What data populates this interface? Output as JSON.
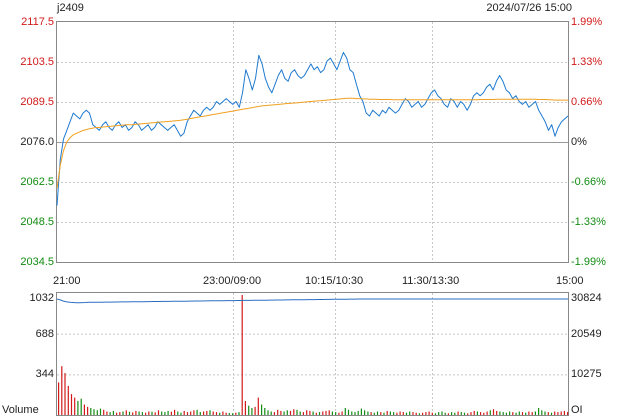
{
  "header": {
    "symbol": "j2409",
    "datetime": "2024/07/26 15:00"
  },
  "colors": {
    "up": "#d21a1a",
    "down": "#128c12",
    "neutral": "#222222",
    "price_line": "#1f7ad0",
    "avg_line": "#f0a020",
    "oi_line": "#2a6fc0"
  },
  "chart_data": [
    {
      "type": "line",
      "price_axis": {
        "left_ticks": [
          "2117.5",
          "2103.5",
          "2089.5",
          "2076.0",
          "2062.5",
          "2048.5",
          "2034.5"
        ],
        "right_ticks": [
          "1.99%",
          "1.33%",
          "0.66%",
          "0%",
          "-0.66%",
          "-1.33%",
          "-1.99%"
        ],
        "ylim": [
          2034.5,
          2117.5
        ],
        "base": 2076.0
      },
      "time_axis": {
        "ticks": [
          "21:00",
          "23:00/09:00",
          "10:15/10:30",
          "11:30/13:30",
          "15:00"
        ]
      },
      "series": [
        {
          "role": "price",
          "values": [
            2054,
            2070,
            2077,
            2080,
            2083,
            2086,
            2085,
            2084,
            2086,
            2087,
            2086,
            2082,
            2081,
            2080,
            2082,
            2083,
            2081,
            2080,
            2082,
            2083,
            2081,
            2082,
            2080,
            2081,
            2083,
            2082,
            2080,
            2081,
            2082,
            2080,
            2081,
            2083,
            2082,
            2081,
            2080,
            2081,
            2082,
            2080,
            2078,
            2079,
            2083,
            2085,
            2087,
            2086,
            2085,
            2087,
            2088,
            2087,
            2088,
            2090,
            2089,
            2090,
            2091,
            2090,
            2089,
            2090,
            2088,
            2093,
            2101,
            2098,
            2094,
            2098,
            2106,
            2103,
            2098,
            2095,
            2093,
            2096,
            2099,
            2101,
            2098,
            2097,
            2100,
            2101,
            2099,
            2098,
            2099,
            2101,
            2103,
            2101,
            2102,
            2100,
            2101,
            2104,
            2105,
            2103,
            2101,
            2104,
            2107,
            2105,
            2101,
            2100,
            2096,
            2092,
            2090,
            2086,
            2085,
            2087,
            2086,
            2085,
            2087,
            2086,
            2088,
            2087,
            2086,
            2087,
            2089,
            2091,
            2090,
            2088,
            2089,
            2090,
            2088,
            2089,
            2091,
            2093,
            2094,
            2092,
            2091,
            2089,
            2088,
            2091,
            2090,
            2088,
            2090,
            2089,
            2087,
            2089,
            2092,
            2093,
            2092,
            2093,
            2095,
            2096,
            2094,
            2097,
            2099,
            2097,
            2094,
            2093,
            2091,
            2092,
            2090,
            2089,
            2090,
            2088,
            2089,
            2090,
            2087,
            2085,
            2083,
            2080,
            2082,
            2078,
            2081,
            2083,
            2084,
            2085
          ]
        },
        {
          "role": "average",
          "values": [
            2060,
            2068,
            2073,
            2076,
            2077.5,
            2078.5,
            2079,
            2079.5,
            2080,
            2080.3,
            2080.6,
            2080.8,
            2081,
            2081,
            2081.2,
            2081.3,
            2081.4,
            2081.5,
            2081.6,
            2081.7,
            2081.8,
            2081.9,
            2082,
            2082,
            2082.1,
            2082.2,
            2082.3,
            2082.4,
            2082.5,
            2082.6,
            2082.7,
            2082.8,
            2082.9,
            2083,
            2083.1,
            2083.2,
            2083.3,
            2083.4,
            2083.5,
            2083.7,
            2083.9,
            2084.1,
            2084.3,
            2084.5,
            2084.7,
            2084.9,
            2085.1,
            2085.3,
            2085.5,
            2085.7,
            2085.9,
            2086.1,
            2086.3,
            2086.5,
            2086.7,
            2086.9,
            2087.1,
            2087.3,
            2087.5,
            2087.7,
            2087.9,
            2088.1,
            2088.3,
            2088.5,
            2088.6,
            2088.7,
            2088.8,
            2088.9,
            2089,
            2089.1,
            2089.2,
            2089.3,
            2089.4,
            2089.5,
            2089.6,
            2089.7,
            2089.8,
            2089.9,
            2090,
            2090.1,
            2090.2,
            2090.3,
            2090.4,
            2090.5,
            2090.6,
            2090.7,
            2090.8,
            2090.9,
            2091,
            2091.1,
            2091.1,
            2091.1,
            2091,
            2091,
            2090.9,
            2090.9,
            2090.8,
            2090.8,
            2090.8,
            2090.7,
            2090.7,
            2090.7,
            2090.7,
            2090.6,
            2090.6,
            2090.6,
            2090.6,
            2090.6,
            2090.6,
            2090.6,
            2090.6,
            2090.6,
            2090.6,
            2090.6,
            2090.6,
            2090.6,
            2090.6,
            2090.6,
            2090.6,
            2090.6,
            2090.6,
            2090.6,
            2090.6,
            2090.6,
            2090.6,
            2090.6,
            2090.6,
            2090.6,
            2090.6,
            2090.6,
            2090.7,
            2090.7,
            2090.7,
            2090.7,
            2090.7,
            2090.8,
            2090.8,
            2090.8,
            2090.8,
            2090.8,
            2090.8,
            2090.8,
            2090.8,
            2090.8,
            2090.8,
            2090.8,
            2090.8,
            2090.8,
            2090.7,
            2090.7,
            2090.7,
            2090.6,
            2090.6,
            2090.5,
            2090.5,
            2090.5,
            2090.5,
            2090.5
          ]
        }
      ]
    },
    {
      "type": "bar",
      "volume_axis": {
        "label": "Volume",
        "left_ticks": [
          "1032",
          "688",
          "344"
        ],
        "ylim": [
          0,
          1032
        ]
      },
      "oi_axis": {
        "label": "OI",
        "right_ticks": [
          "30824",
          "20549",
          "10275"
        ]
      },
      "series": [
        {
          "role": "volume",
          "values": [
            280,
            420,
            360,
            250,
            180,
            150,
            120,
            140,
            90,
            70,
            60,
            50,
            40,
            55,
            45,
            30,
            25,
            35,
            20,
            25,
            30,
            40,
            28,
            22,
            35,
            30,
            25,
            20,
            30,
            28,
            22,
            40,
            30,
            25,
            35,
            28,
            45,
            30,
            20,
            35,
            25,
            30,
            40,
            45,
            25,
            30,
            35,
            40,
            30,
            25,
            20,
            30,
            20,
            18,
            15,
            20,
            25,
            1032,
            120,
            80,
            60,
            70,
            150,
            90,
            60,
            40,
            30,
            25,
            45,
            35,
            30,
            40,
            35,
            50,
            45,
            30,
            25,
            40,
            35,
            30,
            20,
            25,
            30,
            35,
            40,
            30,
            25,
            20,
            30,
            60,
            45,
            30,
            25,
            35,
            55,
            40,
            30,
            25,
            20,
            30,
            25,
            20,
            35,
            30,
            25,
            20,
            30,
            25,
            20,
            30,
            25,
            20,
            15,
            20,
            25,
            30,
            20,
            15,
            25,
            30,
            20,
            15,
            25,
            20,
            30,
            25,
            20,
            15,
            25,
            35,
            30,
            25,
            20,
            30,
            40,
            50,
            35,
            30,
            25,
            20,
            30,
            25,
            20,
            30,
            25,
            20,
            30,
            25,
            30,
            60,
            40,
            30,
            25,
            20,
            30,
            25,
            30,
            35,
            25
          ]
        },
        {
          "role": "open_interest",
          "values": [
            30824,
            30600,
            30300,
            30100,
            30000,
            29950,
            29900,
            29900,
            29920,
            29950,
            29980,
            30000,
            30000,
            30010,
            30020,
            30030,
            30040,
            30050,
            30060,
            30070,
            30080,
            30090,
            30100,
            30110,
            30120,
            30130,
            30140,
            30150,
            30160,
            30170,
            30180,
            30190,
            30200,
            30210,
            30220,
            30230,
            30240,
            30250,
            30260,
            30270,
            30280,
            30290,
            30300,
            30310,
            30320,
            30330,
            30340,
            30350,
            30360,
            30370,
            30380,
            30390,
            30400,
            30410,
            30420,
            30430,
            30440,
            30450,
            30460,
            30470,
            30480,
            30490,
            30500,
            30510,
            30520,
            30530,
            30540,
            30550,
            30560,
            30570,
            30580,
            30590,
            30600,
            30610,
            30620,
            30630,
            30640,
            30650,
            30660,
            30670,
            30680,
            30690,
            30700,
            30710,
            30720,
            30730,
            30740,
            30750,
            30760,
            30770,
            30780,
            30790,
            30800,
            30810,
            30820,
            30824,
            30824,
            30824,
            30824,
            30824,
            30824,
            30824,
            30824,
            30824,
            30824,
            30824,
            30824,
            30824,
            30824,
            30824,
            30824,
            30824,
            30824,
            30824,
            30824,
            30824,
            30824,
            30824,
            30824,
            30824,
            30824,
            30824,
            30824,
            30824,
            30824,
            30824,
            30824,
            30824,
            30824,
            30824,
            30824,
            30824,
            30824,
            30824,
            30824,
            30824,
            30824,
            30824,
            30824,
            30824,
            30824,
            30824,
            30824,
            30824,
            30824,
            30824,
            30824,
            30824,
            30824,
            30824,
            30824,
            30824,
            30824,
            30824,
            30824,
            30824,
            30824,
            30824,
            30824,
            30824
          ]
        }
      ]
    }
  ]
}
